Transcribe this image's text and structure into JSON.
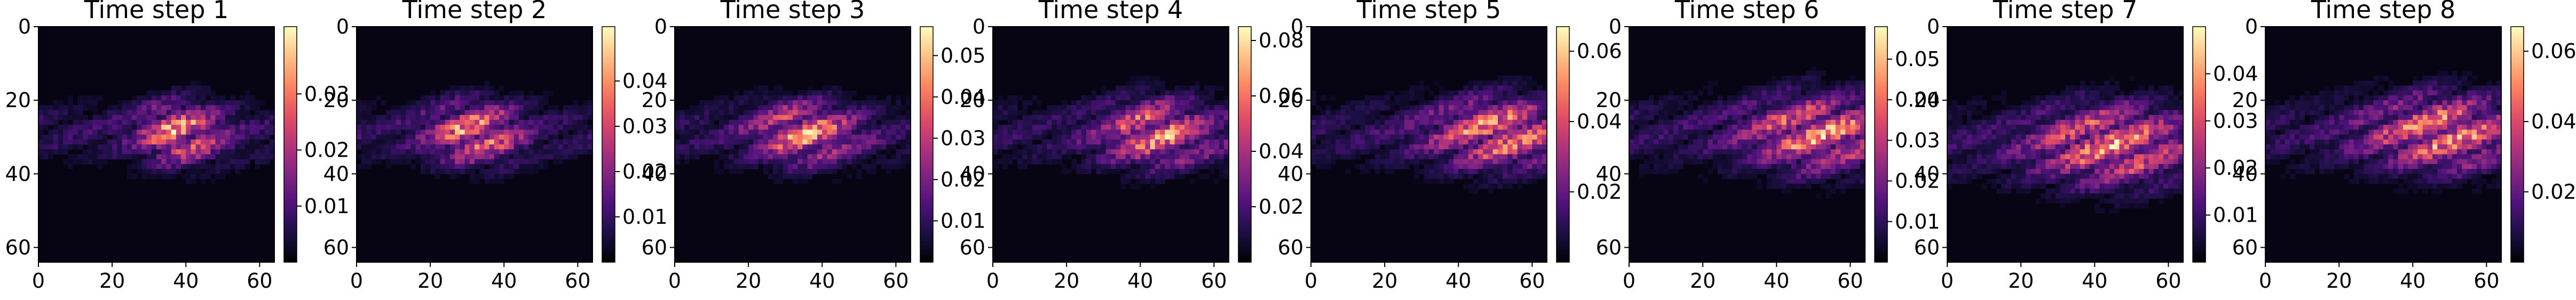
{
  "chart_data": [
    {
      "type": "heatmap",
      "title": "Time step 1",
      "x_ticks": [
        0,
        20,
        40,
        60
      ],
      "y_ticks": [
        0,
        20,
        40,
        60
      ],
      "extent": [
        0,
        64
      ],
      "colormap": "magma",
      "colorbar_range": [
        0.0,
        0.042
      ],
      "colorbar_ticks": [
        0.01,
        0.02,
        0.03
      ],
      "peak": [
        0.6,
        0.45
      ],
      "spread": [
        0.18,
        0.14
      ]
    },
    {
      "type": "heatmap",
      "title": "Time step 2",
      "x_ticks": [
        0,
        20,
        40,
        60
      ],
      "y_ticks": [
        0,
        20,
        40,
        60
      ],
      "extent": [
        0,
        64
      ],
      "colormap": "magma",
      "colorbar_range": [
        0.0,
        0.052
      ],
      "colorbar_ticks": [
        0.01,
        0.02,
        0.03,
        0.04
      ],
      "peak": [
        0.5,
        0.45
      ],
      "spread": [
        0.2,
        0.14
      ]
    },
    {
      "type": "heatmap",
      "title": "Time step 3",
      "x_ticks": [
        0,
        20,
        40,
        60
      ],
      "y_ticks": [
        0,
        20,
        40,
        60
      ],
      "extent": [
        0,
        64
      ],
      "colormap": "magma",
      "colorbar_range": [
        0.0,
        0.057
      ],
      "colorbar_ticks": [
        0.01,
        0.02,
        0.03,
        0.04,
        0.05
      ],
      "peak": [
        0.55,
        0.45
      ],
      "spread": [
        0.22,
        0.14
      ]
    },
    {
      "type": "heatmap",
      "title": "Time step 4",
      "x_ticks": [
        0,
        20,
        40,
        60
      ],
      "y_ticks": [
        0,
        20,
        40,
        60
      ],
      "extent": [
        0,
        64
      ],
      "colormap": "magma",
      "colorbar_range": [
        0.0,
        0.085
      ],
      "colorbar_ticks": [
        0.02,
        0.04,
        0.06,
        0.08
      ],
      "peak": [
        0.7,
        0.45
      ],
      "spread": [
        0.24,
        0.15
      ]
    },
    {
      "type": "heatmap",
      "title": "Time step 5",
      "x_ticks": [
        0,
        20,
        40,
        60
      ],
      "y_ticks": [
        0,
        20,
        40,
        60
      ],
      "extent": [
        0,
        64
      ],
      "colormap": "magma",
      "colorbar_range": [
        0.0,
        0.067
      ],
      "colorbar_ticks": [
        0.02,
        0.04,
        0.06
      ],
      "peak": [
        0.8,
        0.45
      ],
      "spread": [
        0.28,
        0.16
      ]
    },
    {
      "type": "heatmap",
      "title": "Time step 6",
      "x_ticks": [
        0,
        20,
        40,
        60
      ],
      "y_ticks": [
        0,
        20,
        40,
        60
      ],
      "extent": [
        0,
        64
      ],
      "colormap": "magma",
      "colorbar_range": [
        0.0,
        0.058
      ],
      "colorbar_ticks": [
        0.01,
        0.02,
        0.03,
        0.04,
        0.05
      ],
      "peak": [
        0.8,
        0.45
      ],
      "spread": [
        0.3,
        0.17
      ]
    },
    {
      "type": "heatmap",
      "title": "Time step 7",
      "x_ticks": [
        0,
        20,
        40,
        60
      ],
      "y_ticks": [
        0,
        20,
        40,
        60
      ],
      "extent": [
        0,
        64
      ],
      "colormap": "magma",
      "colorbar_range": [
        0.0,
        0.05
      ],
      "colorbar_ticks": [
        0.01,
        0.02,
        0.03,
        0.04
      ],
      "peak": [
        0.7,
        0.5
      ],
      "spread": [
        0.32,
        0.18
      ]
    },
    {
      "type": "heatmap",
      "title": "Time step 8",
      "x_ticks": [
        0,
        20,
        40,
        60
      ],
      "y_ticks": [
        0,
        20,
        40,
        60
      ],
      "extent": [
        0,
        64
      ],
      "colormap": "magma",
      "colorbar_range": [
        0.0,
        0.067
      ],
      "colorbar_ticks": [
        0.02,
        0.04,
        0.06
      ],
      "peak": [
        0.75,
        0.45
      ],
      "spread": [
        0.32,
        0.17
      ]
    }
  ],
  "colors": {
    "axis": "#000000",
    "background": "#ffffff"
  }
}
